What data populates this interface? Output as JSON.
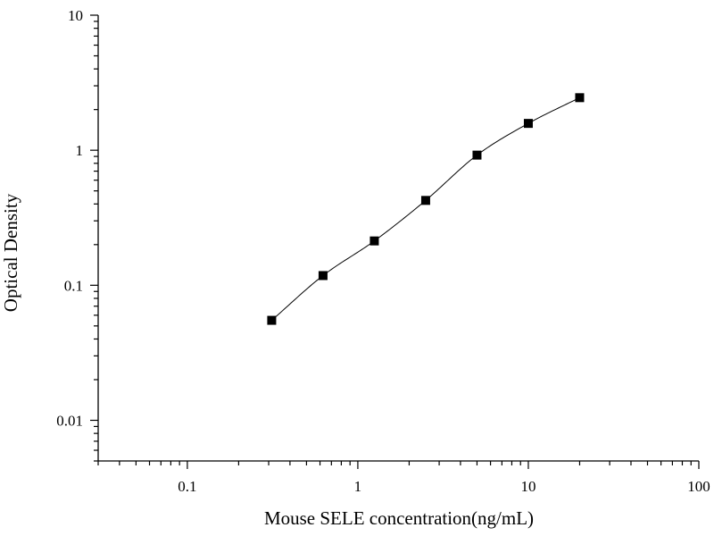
{
  "chart_data": {
    "type": "scatter",
    "title": "",
    "xlabel": "Mouse SELE concentration(ng/mL)",
    "ylabel": "Optical Density",
    "xscale": "log",
    "yscale": "log",
    "xlim": [
      0.03,
      100
    ],
    "ylim": [
      0.005,
      10
    ],
    "x_ticks": [
      0.1,
      1,
      10,
      100
    ],
    "x_tick_labels": [
      "0.1",
      "1",
      "10",
      "100"
    ],
    "y_ticks": [
      0.01,
      0.1,
      1,
      10
    ],
    "y_tick_labels": [
      "0.01",
      "0.1",
      "1",
      "10"
    ],
    "grid": false,
    "legend": "none",
    "marker": "square",
    "colors": {
      "points": "#000000",
      "curve": "#000000",
      "axes": "#000000"
    },
    "series": [
      {
        "x": [
          0.3125,
          0.625,
          1.25,
          2.5,
          5,
          10,
          20
        ],
        "y": [
          0.055,
          0.118,
          0.213,
          0.425,
          0.92,
          1.58,
          2.45
        ]
      }
    ]
  }
}
